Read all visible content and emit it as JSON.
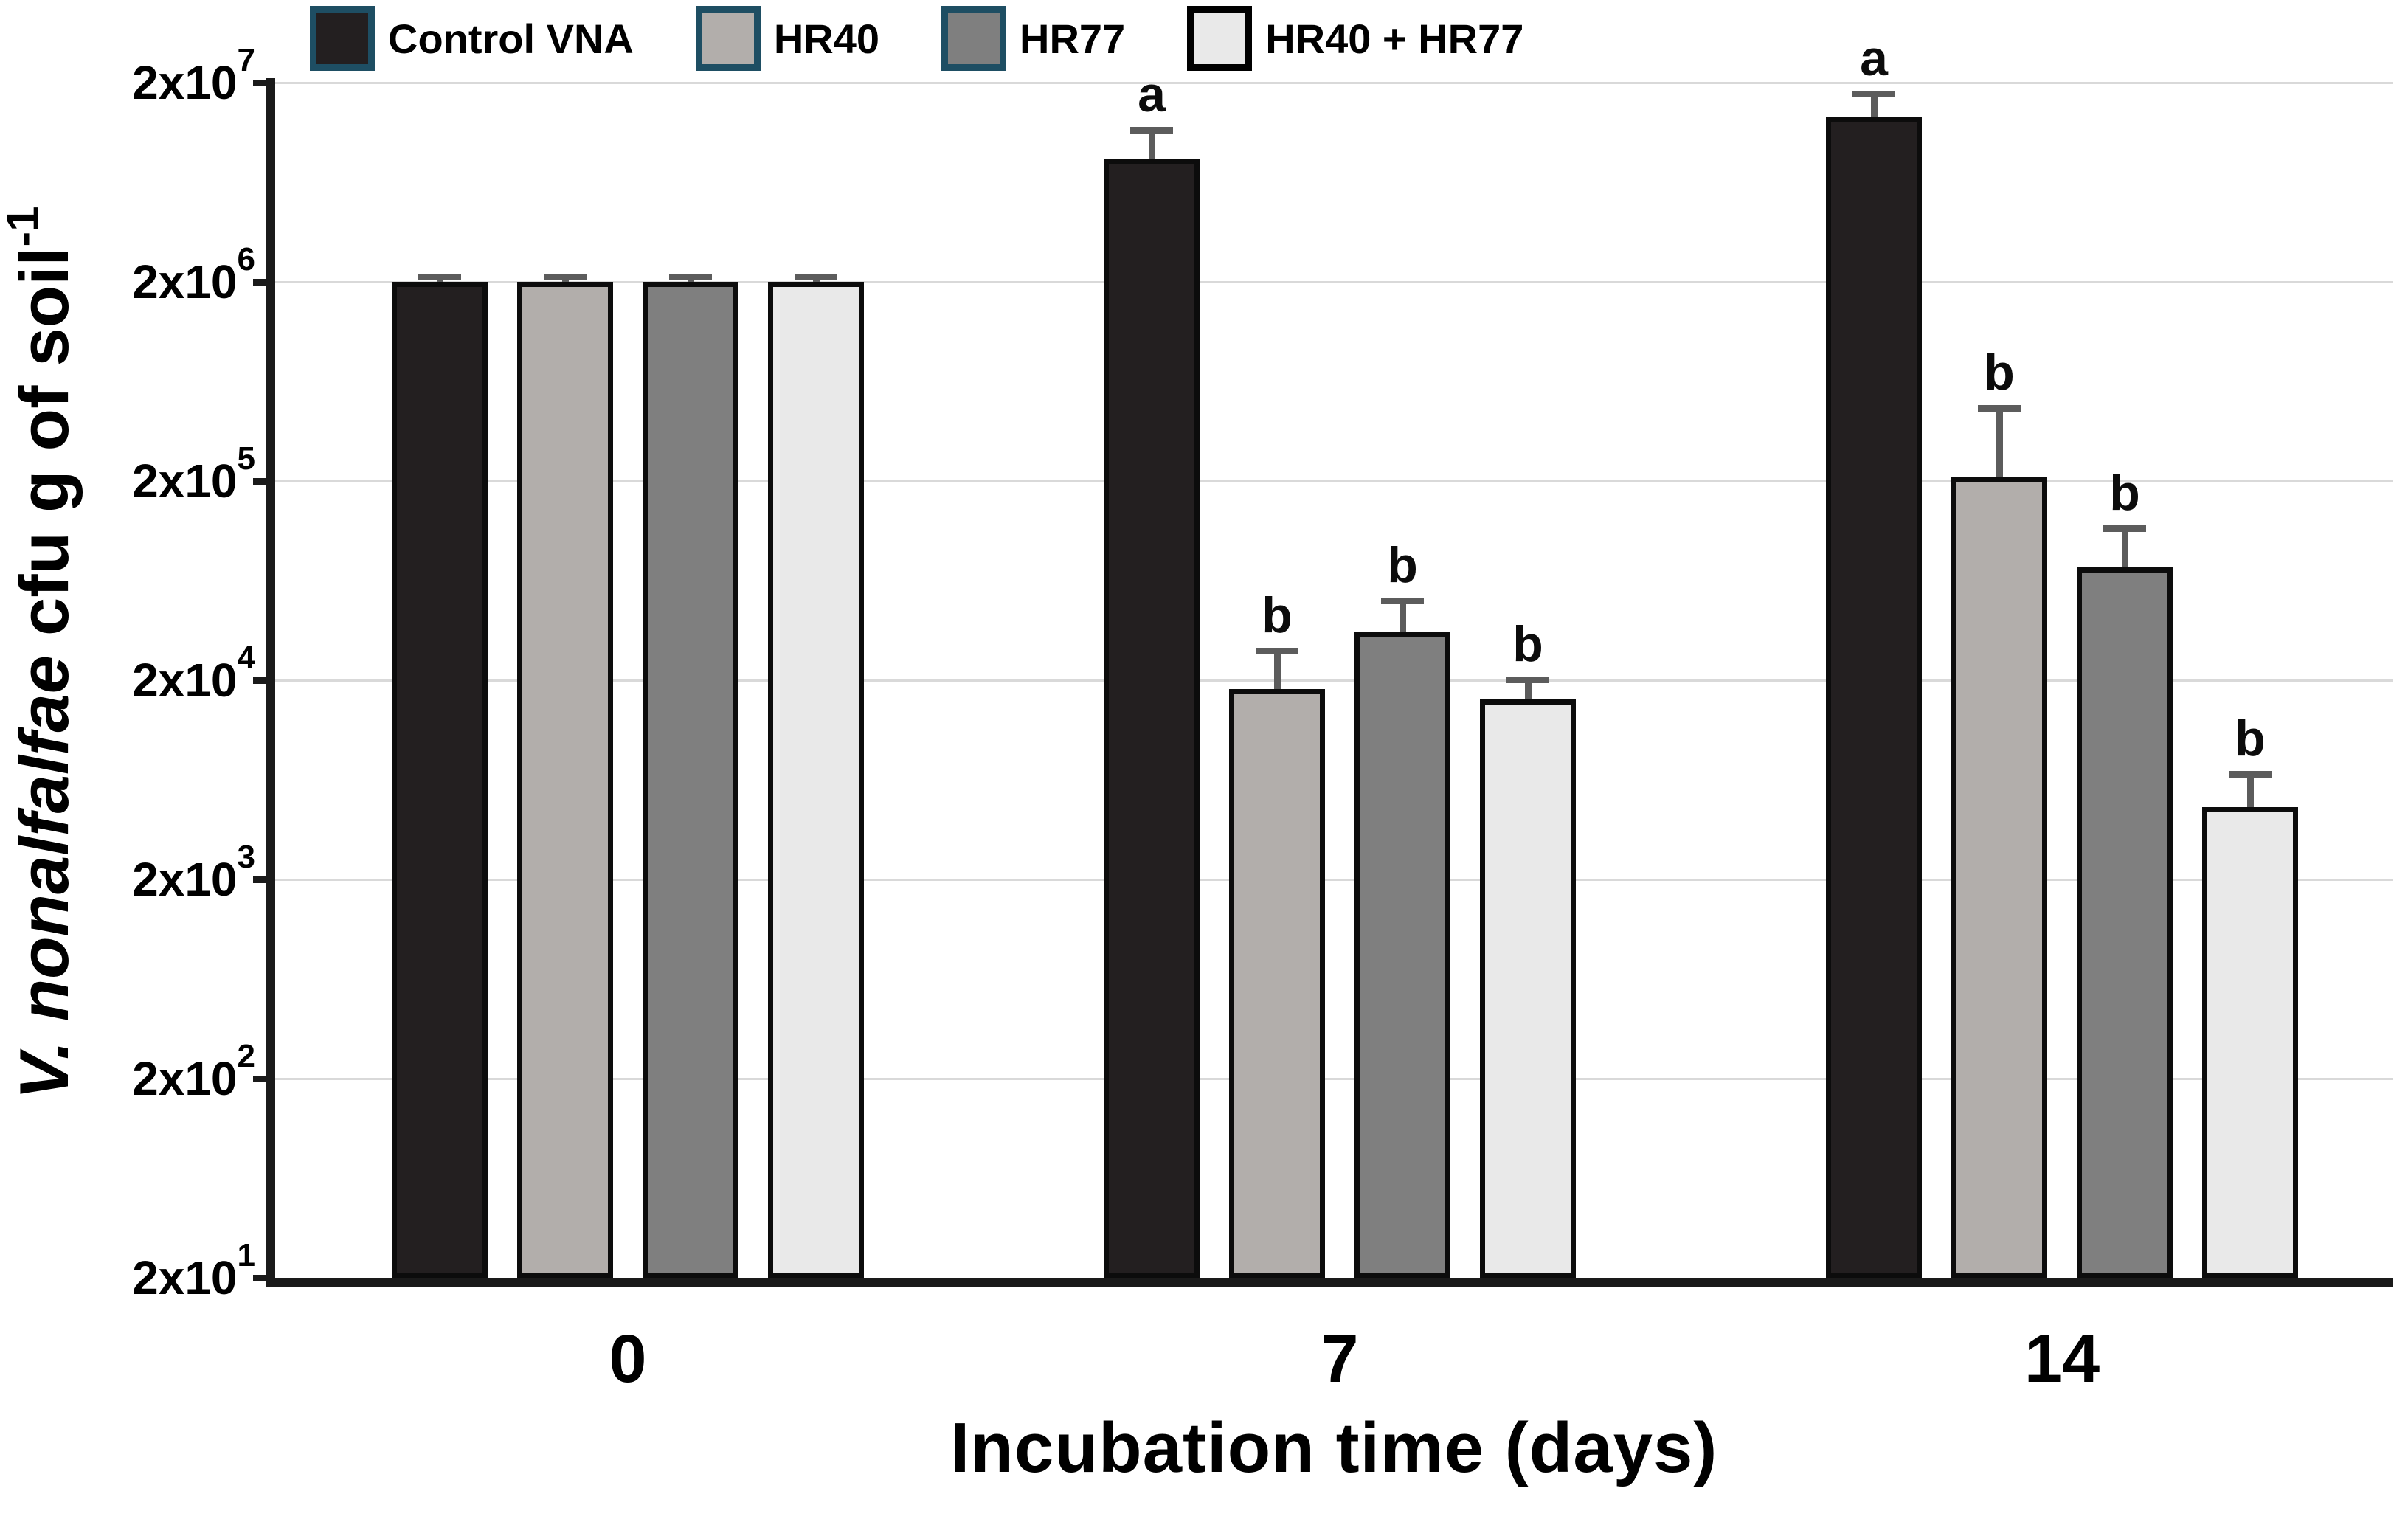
{
  "chart_data": {
    "type": "bar",
    "title": "",
    "xlabel": "Incubation time (days)",
    "ylabel": {
      "italic_part": "V. nonalfalfae",
      "regular_part": " cfu g of soil",
      "superscript": "-1"
    },
    "categories": [
      "0",
      "7",
      "14"
    ],
    "yaxis": {
      "scale": "log",
      "min": 20,
      "max": 20000000,
      "ticks": [
        {
          "base": "2x10",
          "exp": "7",
          "value": 20000000
        },
        {
          "base": "2x10",
          "exp": "6",
          "value": 2000000
        },
        {
          "base": "2x10",
          "exp": "5",
          "value": 200000
        },
        {
          "base": "2x10",
          "exp": "4",
          "value": 20000
        },
        {
          "base": "2x10",
          "exp": "3",
          "value": 2000
        },
        {
          "base": "2x10",
          "exp": "2",
          "value": 200
        },
        {
          "base": "2x10",
          "exp": "1",
          "value": 20
        }
      ],
      "grid": true
    },
    "legend_position": "top",
    "series": [
      {
        "name": "Control VNA",
        "fill": "#231f20",
        "bar_border": "#0c0c0c",
        "legend_border": "#1e4e63",
        "values": [
          2000000,
          8300000,
          13500000
        ],
        "errors_upper": [
          2100000,
          11500000,
          17500000
        ],
        "letters": [
          "",
          "a",
          "a"
        ]
      },
      {
        "name": "HR40",
        "fill": "#b2aeab",
        "bar_border": "#0c0c0c",
        "legend_border": "#1e4e63",
        "values": [
          2000000,
          18000,
          210000
        ],
        "errors_upper": [
          2100000,
          28000,
          460000
        ],
        "letters": [
          "",
          "b",
          "b"
        ]
      },
      {
        "name": "HR77",
        "fill": "#7f7f7f",
        "bar_border": "#0c0c0c",
        "legend_border": "#1e4e63",
        "values": [
          2000000,
          35000,
          74000
        ],
        "errors_upper": [
          2100000,
          50000,
          115000
        ],
        "letters": [
          "",
          "b",
          "b"
        ]
      },
      {
        "name": "HR40 + HR77",
        "fill": "#e9e9e9",
        "bar_border": "#0c0c0c",
        "legend_border": "#000000",
        "values": [
          2000000,
          16000,
          4600
        ],
        "errors_upper": [
          2100000,
          20000,
          6700
        ],
        "letters": [
          "",
          "b",
          "b"
        ]
      }
    ],
    "colors": {
      "gridline": "#d9d9d9",
      "axis": "#1a1a1a",
      "error_bar": "#5c5c5c",
      "text": "#000000"
    }
  }
}
